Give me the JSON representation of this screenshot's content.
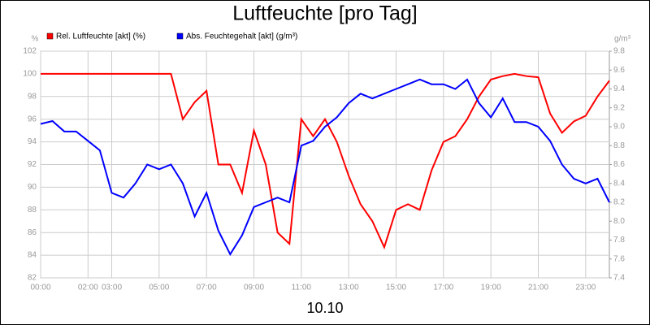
{
  "chart_data": {
    "type": "line",
    "title": "Luftfeuchte [pro Tag]",
    "x_label": "10.10",
    "y_label": "%",
    "y2_label": "g/m³",
    "xlim": [
      0,
      24
    ],
    "xticks": [
      {
        "value": 0,
        "label": "00:00"
      },
      {
        "value": 2,
        "label": "02:00"
      },
      {
        "value": 3,
        "label": "03:00"
      },
      {
        "value": 5,
        "label": "05:00"
      },
      {
        "value": 7,
        "label": "07:00"
      },
      {
        "value": 9,
        "label": "09:00"
      },
      {
        "value": 11,
        "label": "11:00"
      },
      {
        "value": 13,
        "label": "13:00"
      },
      {
        "value": 15,
        "label": "15:00"
      },
      {
        "value": 17,
        "label": "17:00"
      },
      {
        "value": 19,
        "label": "19:00"
      },
      {
        "value": 21,
        "label": "21:00"
      },
      {
        "value": 23,
        "label": "23:00"
      }
    ],
    "ylim": [
      82,
      102
    ],
    "yticks": [
      82,
      84,
      86,
      88,
      90,
      92,
      94,
      96,
      98,
      100,
      102
    ],
    "y2lim": [
      7.4,
      9.8
    ],
    "y2ticks": [
      7.4,
      7.6,
      7.8,
      {
        "value": 8,
        "label": "8.0"
      },
      8.2,
      8.4,
      8.6,
      8.8,
      {
        "value": 9,
        "label": "9.0"
      },
      9.2,
      9.4,
      9.6,
      9.8
    ],
    "grid": true,
    "legend": "top-left",
    "x": [
      0,
      0.5,
      1,
      1.5,
      2,
      2.5,
      3,
      3.5,
      4,
      4.5,
      5,
      5.5,
      6,
      6.5,
      7,
      7.5,
      8,
      8.5,
      9,
      9.5,
      10,
      10.5,
      11,
      11.5,
      12,
      12.5,
      13,
      13.5,
      14,
      14.5,
      15,
      15.5,
      16,
      16.5,
      17,
      17.5,
      18,
      18.5,
      19,
      19.5,
      20,
      20.5,
      21,
      21.5,
      22,
      22.5,
      23,
      23.5,
      24
    ],
    "series": [
      {
        "name": "Rel. Luftfeuchte [akt] (%)",
        "color": "#ff0000",
        "axis": "y",
        "values": [
          100,
          100,
          100,
          100,
          100,
          100,
          100,
          100,
          100,
          100,
          100,
          100,
          96,
          97.5,
          98.5,
          92,
          92,
          89.5,
          95,
          92,
          86,
          85,
          96,
          94.5,
          96,
          94,
          91,
          88.5,
          87,
          84.7,
          88,
          88.5,
          88,
          91.5,
          94,
          94.5,
          96,
          98,
          99.5,
          99.8,
          100,
          99.8,
          99.7,
          96.5,
          94.8,
          95.8,
          96.3,
          98,
          99.4
        ]
      },
      {
        "name": "Abs. Feuchtegehalt [akt] (g/m³)",
        "color": "#0000ff",
        "axis": "y2",
        "values": [
          9.03,
          9.06,
          8.95,
          8.95,
          8.85,
          8.75,
          8.3,
          8.25,
          8.4,
          8.6,
          8.55,
          8.6,
          8.4,
          8.05,
          8.3,
          7.9,
          7.65,
          7.85,
          8.15,
          8.2,
          8.25,
          8.2,
          8.8,
          8.85,
          9.0,
          9.1,
          9.25,
          9.35,
          9.3,
          9.35,
          9.4,
          9.45,
          9.5,
          9.45,
          9.45,
          9.4,
          9.5,
          9.25,
          9.1,
          9.3,
          9.05,
          9.05,
          9.0,
          8.85,
          8.6,
          8.45,
          8.4,
          8.45,
          8.2
        ]
      }
    ]
  }
}
